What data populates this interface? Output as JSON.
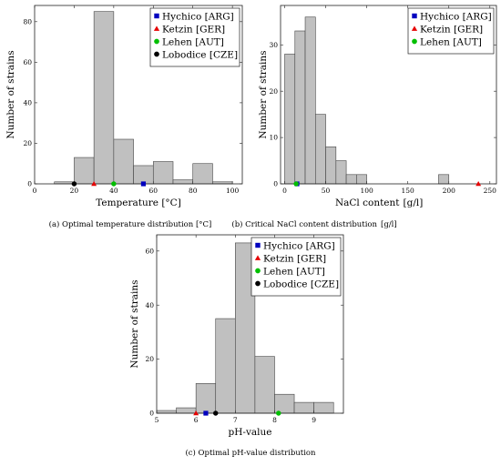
{
  "figure": {
    "colors": {
      "bar_fill": "#c0c0c0",
      "bar_edge": "#444444",
      "Hychico [ARG]": "#0000bf",
      "Ketzin [GER]": "#e60000",
      "Lehen [AUT]": "#00bf00",
      "Lobodice [CZE]": "#000000"
    }
  },
  "chart_data": [
    {
      "id": "a",
      "type": "bar",
      "caption": "(a) Optimal temperature distribution [°C]",
      "xlabel": "Temperature [°C]",
      "ylabel": "Number of strains",
      "xlim": [
        0,
        105
      ],
      "ylim": [
        0,
        88
      ],
      "xticks": [
        0,
        20,
        40,
        60,
        80,
        100
      ],
      "yticks": [
        0,
        20,
        40,
        60,
        80
      ],
      "bins": [
        {
          "x0": 10,
          "x1": 20,
          "value": 1
        },
        {
          "x0": 20,
          "x1": 30,
          "value": 13
        },
        {
          "x0": 30,
          "x1": 40,
          "value": 85
        },
        {
          "x0": 40,
          "x1": 50,
          "value": 22
        },
        {
          "x0": 50,
          "x1": 60,
          "value": 9
        },
        {
          "x0": 60,
          "x1": 70,
          "value": 11
        },
        {
          "x0": 70,
          "x1": 80,
          "value": 2
        },
        {
          "x0": 80,
          "x1": 90,
          "value": 10
        },
        {
          "x0": 90,
          "x1": 100,
          "value": 1
        }
      ],
      "markers": [
        {
          "name": "Hychico [ARG]",
          "shape": "square",
          "x": 55
        },
        {
          "name": "Ketzin [GER]",
          "shape": "triangle",
          "x": 30
        },
        {
          "name": "Lehen [AUT]",
          "shape": "circle",
          "x": 40
        },
        {
          "name": "Lobodice [CZE]",
          "shape": "circle",
          "x": 20
        }
      ],
      "legend": [
        "Hychico [ARG]",
        "Ketzin [GER]",
        "Lehen [AUT]",
        "Lobodice [CZE]"
      ],
      "legend_position": "top-right",
      "grid": false
    },
    {
      "id": "b",
      "type": "bar",
      "caption": "(b) Critical NaCl content distribution",
      "caption_unit": "[g/l]",
      "xlabel": "NaCl content",
      "xlabel_unit": "[g/l]",
      "ylabel": "Number of strains",
      "xlim": [
        -5,
        258
      ],
      "ylim": [
        0,
        38.5
      ],
      "xticks": [
        0,
        50,
        100,
        150,
        200,
        250
      ],
      "yticks": [
        0,
        10,
        20,
        30
      ],
      "bins": [
        {
          "x0": 0,
          "x1": 12.5,
          "value": 28
        },
        {
          "x0": 12.5,
          "x1": 25,
          "value": 33
        },
        {
          "x0": 25,
          "x1": 37.5,
          "value": 36
        },
        {
          "x0": 37.5,
          "x1": 50,
          "value": 15
        },
        {
          "x0": 50,
          "x1": 62.5,
          "value": 8
        },
        {
          "x0": 62.5,
          "x1": 75,
          "value": 5
        },
        {
          "x0": 75,
          "x1": 87.5,
          "value": 2
        },
        {
          "x0": 87.5,
          "x1": 100,
          "value": 2
        },
        {
          "x0": 187.5,
          "x1": 200,
          "value": 2
        }
      ],
      "markers": [
        {
          "name": "Hychico [ARG]",
          "shape": "square",
          "x": 15
        },
        {
          "name": "Ketzin [GER]",
          "shape": "triangle",
          "x": 236
        },
        {
          "name": "Lehen [AUT]",
          "shape": "circle",
          "x": 14
        }
      ],
      "legend": [
        "Hychico [ARG]",
        "Ketzin [GER]",
        "Lehen [AUT]"
      ],
      "legend_position": "top-right",
      "grid": false
    },
    {
      "id": "c",
      "type": "bar",
      "caption": "(c) Optimal pH-value distribution",
      "xlabel": "pH-value",
      "ylabel": "Number of strains",
      "xlim": [
        5,
        9.75
      ],
      "ylim": [
        0,
        66
      ],
      "xticks": [
        5,
        6,
        7,
        8,
        9
      ],
      "yticks": [
        0,
        20,
        40,
        60
      ],
      "bins": [
        {
          "x0": 5,
          "x1": 5.5,
          "value": 1
        },
        {
          "x0": 5.5,
          "x1": 6,
          "value": 2
        },
        {
          "x0": 6,
          "x1": 6.5,
          "value": 11
        },
        {
          "x0": 6.5,
          "x1": 7,
          "value": 35
        },
        {
          "x0": 7,
          "x1": 7.5,
          "value": 63
        },
        {
          "x0": 7.5,
          "x1": 8,
          "value": 21
        },
        {
          "x0": 8,
          "x1": 8.5,
          "value": 7
        },
        {
          "x0": 8.5,
          "x1": 9,
          "value": 4
        },
        {
          "x0": 9,
          "x1": 9.5,
          "value": 4
        }
      ],
      "markers": [
        {
          "name": "Hychico [ARG]",
          "shape": "square",
          "x": 6.25
        },
        {
          "name": "Ketzin [GER]",
          "shape": "triangle",
          "x": 6
        },
        {
          "name": "Lehen [AUT]",
          "shape": "circle",
          "x": 8.1
        },
        {
          "name": "Lobodice [CZE]",
          "shape": "circle",
          "x": 6.5
        }
      ],
      "legend": [
        "Hychico [ARG]",
        "Ketzin [GER]",
        "Lehen [AUT]",
        "Lobodice [CZE]"
      ],
      "legend_position": "top-right",
      "grid": false
    }
  ]
}
